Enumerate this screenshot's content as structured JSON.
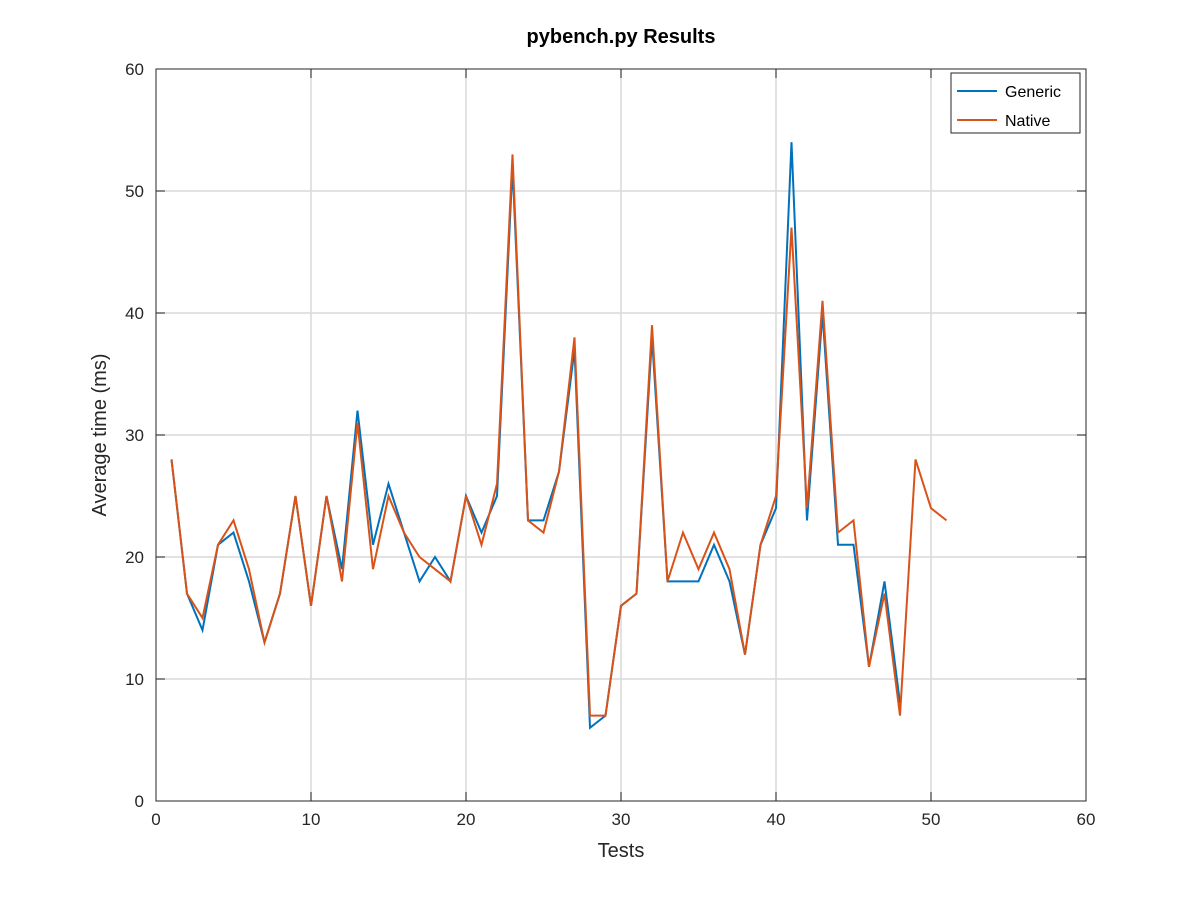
{
  "chart_data": {
    "type": "line",
    "title": "pybench.py Results",
    "xlabel": "Tests",
    "ylabel": "Average time (ms)",
    "xlim": [
      0,
      60
    ],
    "ylim": [
      0,
      60
    ],
    "xticks": [
      0,
      10,
      20,
      30,
      40,
      50,
      60
    ],
    "yticks": [
      0,
      10,
      20,
      30,
      40,
      50,
      60
    ],
    "grid": true,
    "legend_position": "top-right",
    "x": [
      1,
      2,
      3,
      4,
      5,
      6,
      7,
      8,
      9,
      10,
      11,
      12,
      13,
      14,
      15,
      16,
      17,
      18,
      19,
      20,
      21,
      22,
      23,
      24,
      25,
      26,
      27,
      28,
      29,
      30,
      31,
      32,
      33,
      34,
      35,
      36,
      37,
      38,
      39,
      40,
      41,
      42,
      43,
      44,
      45,
      46,
      47,
      48,
      49,
      50,
      51
    ],
    "series": [
      {
        "name": "Generic",
        "color": "#0072bd",
        "values": [
          28,
          17,
          14,
          21,
          22,
          18,
          13,
          17,
          25,
          16,
          25,
          19,
          32,
          21,
          26,
          22,
          18,
          20,
          18,
          25,
          22,
          25,
          52,
          23,
          23,
          27,
          37,
          6,
          7,
          16,
          17,
          38,
          18,
          18,
          18,
          21,
          18,
          12,
          21,
          24,
          54,
          23,
          40,
          21,
          21,
          11,
          18,
          8,
          null,
          null,
          null
        ]
      },
      {
        "name": "Native",
        "color": "#d95319",
        "values": [
          28,
          17,
          15,
          21,
          23,
          19,
          13,
          17,
          25,
          16,
          25,
          18,
          31,
          19,
          25,
          22,
          20,
          19,
          18,
          25,
          21,
          26,
          53,
          23,
          22,
          27,
          38,
          7,
          7,
          16,
          17,
          39,
          18,
          22,
          19,
          22,
          19,
          12,
          21,
          25,
          47,
          24,
          41,
          22,
          23,
          11,
          17,
          7,
          28,
          24,
          23
        ]
      }
    ]
  }
}
